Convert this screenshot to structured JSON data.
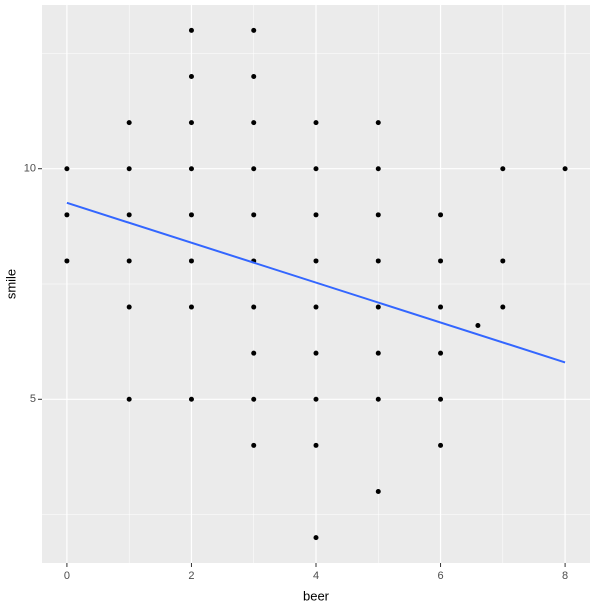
{
  "chart_data": {
    "type": "scatter",
    "xlabel": "beer",
    "ylabel": "smile",
    "series": [
      {
        "color": "#000000",
        "x": [
          0,
          0,
          0,
          1,
          1,
          1,
          1,
          1,
          1,
          2,
          2,
          2,
          2,
          2,
          2,
          2,
          2,
          3,
          3,
          3,
          3,
          3,
          3,
          3,
          3,
          3,
          3,
          4,
          4,
          4,
          4,
          4,
          4,
          4,
          4,
          4,
          5,
          5,
          5,
          5,
          5,
          5,
          5,
          5,
          6,
          6,
          6,
          6,
          6,
          6,
          7,
          7,
          7,
          8,
          6.6
        ],
        "values": [
          10,
          9,
          8,
          11,
          10,
          9,
          8,
          7,
          5,
          13,
          12,
          11,
          10,
          9,
          8,
          7,
          5,
          13,
          12,
          11,
          10,
          9,
          8,
          7,
          6,
          5,
          4,
          11,
          10,
          9,
          8,
          7,
          6,
          5,
          4,
          2,
          11,
          10,
          9,
          8,
          7,
          6,
          5,
          3,
          9,
          8,
          7,
          6,
          5,
          4,
          10,
          8,
          7,
          10,
          6.6
        ]
      }
    ],
    "trend": {
      "x": [
        0,
        8
      ],
      "y": [
        9.26,
        5.8
      ],
      "color": "#3366FF"
    },
    "xlim": [
      -0.4,
      8.4
    ],
    "ylim": [
      1.45,
      13.55
    ],
    "xticks": [
      0,
      2,
      4,
      6,
      8
    ],
    "yticks": [
      5,
      10
    ],
    "grid": true
  }
}
